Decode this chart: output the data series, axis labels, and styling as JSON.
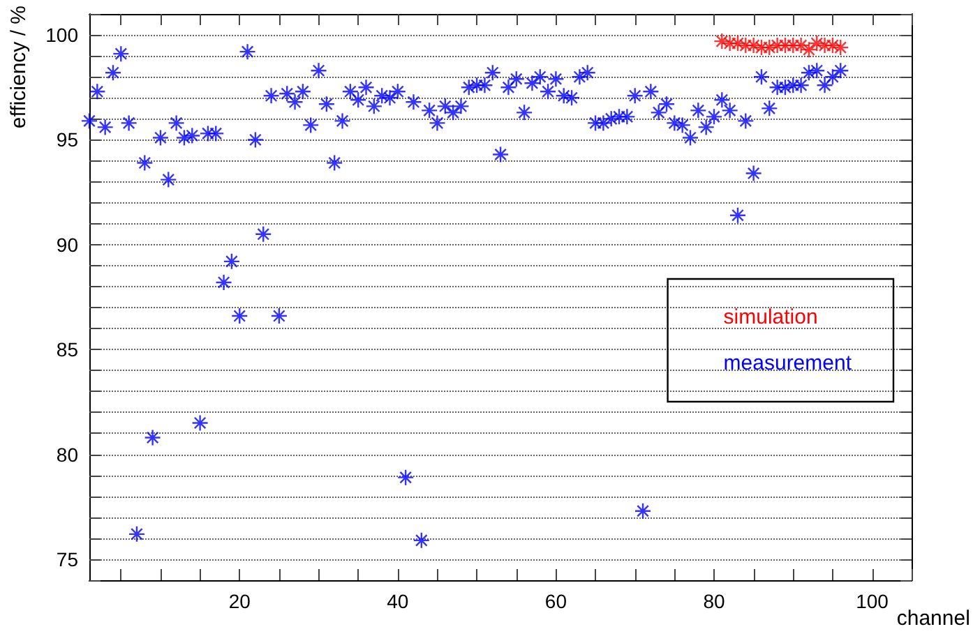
{
  "chart_data": {
    "type": "scatter",
    "xlabel": "channel",
    "ylabel": "efficiency / %",
    "xlim": [
      1,
      105
    ],
    "ylim": [
      74,
      101
    ],
    "xticks": [
      {
        "value": 5,
        "label": null
      },
      {
        "value": 10,
        "label": null
      },
      {
        "value": 15,
        "label": null
      },
      20,
      {
        "value": 25,
        "label": null
      },
      {
        "value": 30,
        "label": null
      },
      {
        "value": 35,
        "label": null
      },
      40,
      {
        "value": 45,
        "label": null
      },
      {
        "value": 50,
        "label": null
      },
      {
        "value": 55,
        "label": null
      },
      60,
      {
        "value": 65,
        "label": null
      },
      {
        "value": 70,
        "label": null
      },
      {
        "value": 75,
        "label": null
      },
      80,
      {
        "value": 85,
        "label": null
      },
      {
        "value": 90,
        "label": null
      },
      {
        "value": 95,
        "label": null
      },
      100,
      {
        "value": 105,
        "label": null
      }
    ],
    "yticks": [
      {
        "value": 74,
        "label": null
      },
      75,
      {
        "value": 76,
        "label": null
      },
      {
        "value": 77,
        "label": null
      },
      {
        "value": 78,
        "label": null
      },
      {
        "value": 79,
        "label": null
      },
      80,
      {
        "value": 81,
        "label": null
      },
      {
        "value": 82,
        "label": null
      },
      {
        "value": 83,
        "label": null
      },
      {
        "value": 84,
        "label": null
      },
      85,
      {
        "value": 86,
        "label": null
      },
      {
        "value": 87,
        "label": null
      },
      {
        "value": 88,
        "label": null
      },
      {
        "value": 89,
        "label": null
      },
      90,
      {
        "value": 91,
        "label": null
      },
      {
        "value": 92,
        "label": null
      },
      {
        "value": 93,
        "label": null
      },
      {
        "value": 94,
        "label": null
      },
      95,
      {
        "value": 96,
        "label": null
      },
      {
        "value": 97,
        "label": null
      },
      {
        "value": 98,
        "label": null
      },
      {
        "value": 99,
        "label": null
      },
      100,
      {
        "value": 101,
        "label": null
      }
    ],
    "grid": "y",
    "legend": "right",
    "marker": "cross",
    "series": [
      {
        "name": "simulation",
        "color": "#ff0000",
        "x": [
          81,
          82,
          83,
          84,
          85,
          86,
          87,
          88,
          89,
          90,
          91,
          92,
          93,
          94,
          95,
          96
        ],
        "values": [
          99.7,
          99.6,
          99.6,
          99.5,
          99.5,
          99.4,
          99.4,
          99.5,
          99.5,
          99.5,
          99.5,
          99.3,
          99.6,
          99.5,
          99.5,
          99.4
        ]
      },
      {
        "name": "measurement",
        "color": "#0000ff",
        "x": [
          1,
          2,
          3,
          4,
          5,
          6,
          7,
          8,
          9,
          10,
          11,
          12,
          13,
          14,
          15,
          16,
          17,
          18,
          19,
          20,
          21,
          22,
          23,
          24,
          25,
          26,
          27,
          28,
          29,
          30,
          31,
          32,
          33,
          34,
          35,
          36,
          37,
          38,
          39,
          40,
          41,
          42,
          43,
          44,
          45,
          46,
          47,
          48,
          49,
          50,
          51,
          52,
          53,
          54,
          55,
          56,
          57,
          58,
          59,
          60,
          61,
          62,
          63,
          64,
          65,
          66,
          67,
          68,
          69,
          70,
          71,
          72,
          73,
          74,
          75,
          76,
          77,
          78,
          79,
          80,
          81,
          82,
          83,
          84,
          85,
          86,
          87,
          88,
          89,
          90,
          91,
          92,
          93,
          94,
          95,
          96
        ],
        "values": [
          95.9,
          97.3,
          95.6,
          98.2,
          99.1,
          95.8,
          76.2,
          93.9,
          80.8,
          95.1,
          93.1,
          95.8,
          95.1,
          95.2,
          81.5,
          95.3,
          95.3,
          88.2,
          89.2,
          86.6,
          99.2,
          95.0,
          90.5,
          97.1,
          86.6,
          97.2,
          96.8,
          97.3,
          95.7,
          98.3,
          96.7,
          93.9,
          95.9,
          97.3,
          96.9,
          97.5,
          96.6,
          97.1,
          97.0,
          97.3,
          78.9,
          96.8,
          75.9,
          96.4,
          95.8,
          96.6,
          96.3,
          96.6,
          97.5,
          97.6,
          97.6,
          98.2,
          94.3,
          97.5,
          97.9,
          96.3,
          97.7,
          98.0,
          97.3,
          97.9,
          97.1,
          97.0,
          98.0,
          98.2,
          95.8,
          95.8,
          96.0,
          96.1,
          96.1,
          97.1,
          77.3,
          97.3,
          96.3,
          96.7,
          95.8,
          95.7,
          95.1,
          96.4,
          95.6,
          96.1,
          96.9,
          96.4,
          91.4,
          95.9,
          93.4,
          98.0,
          96.5,
          97.5,
          97.5,
          97.6,
          97.6,
          98.2,
          98.3,
          97.6,
          98.0,
          98.3
        ]
      }
    ]
  }
}
